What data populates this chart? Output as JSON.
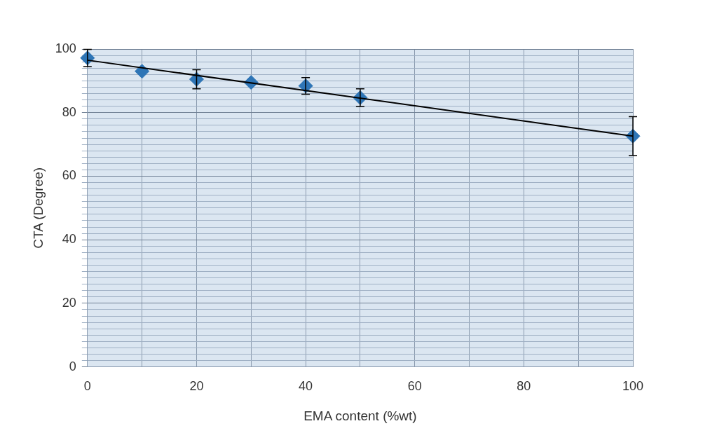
{
  "chart_data": {
    "type": "scatter",
    "xlabel": "EMA content (%wt)",
    "ylabel": "CTA (Degree)",
    "xlim": [
      0,
      100
    ],
    "ylim": [
      0,
      100
    ],
    "xticks": [
      0,
      {
        "value": 10,
        "label": null
      },
      20,
      {
        "value": 30,
        "label": null
      },
      40,
      {
        "value": 50,
        "label": null
      },
      60,
      {
        "value": 70,
        "label": null
      },
      80,
      {
        "value": 90,
        "label": null
      },
      100
    ],
    "yticks": [
      0,
      {
        "value": 2,
        "label": null
      },
      {
        "value": 4,
        "label": null
      },
      {
        "value": 6,
        "label": null
      },
      {
        "value": 8,
        "label": null
      },
      {
        "value": 10,
        "label": null
      },
      {
        "value": 12,
        "label": null
      },
      {
        "value": 14,
        "label": null
      },
      {
        "value": 16,
        "label": null
      },
      {
        "value": 18,
        "label": null
      },
      20,
      {
        "value": 22,
        "label": null
      },
      {
        "value": 24,
        "label": null
      },
      {
        "value": 26,
        "label": null
      },
      {
        "value": 28,
        "label": null
      },
      {
        "value": 30,
        "label": null
      },
      {
        "value": 32,
        "label": null
      },
      {
        "value": 34,
        "label": null
      },
      {
        "value": 36,
        "label": null
      },
      {
        "value": 38,
        "label": null
      },
      40,
      {
        "value": 42,
        "label": null
      },
      {
        "value": 44,
        "label": null
      },
      {
        "value": 46,
        "label": null
      },
      {
        "value": 48,
        "label": null
      },
      {
        "value": 50,
        "label": null
      },
      {
        "value": 52,
        "label": null
      },
      {
        "value": 54,
        "label": null
      },
      {
        "value": 56,
        "label": null
      },
      {
        "value": 58,
        "label": null
      },
      60,
      {
        "value": 62,
        "label": null
      },
      {
        "value": 64,
        "label": null
      },
      {
        "value": 66,
        "label": null
      },
      {
        "value": 68,
        "label": null
      },
      {
        "value": 70,
        "label": null
      },
      {
        "value": 72,
        "label": null
      },
      {
        "value": 74,
        "label": null
      },
      {
        "value": 76,
        "label": null
      },
      {
        "value": 78,
        "label": null
      },
      80,
      {
        "value": 82,
        "label": null
      },
      {
        "value": 84,
        "label": null
      },
      {
        "value": 86,
        "label": null
      },
      {
        "value": 88,
        "label": null
      },
      {
        "value": 90,
        "label": null
      },
      {
        "value": 92,
        "label": null
      },
      {
        "value": 94,
        "label": null
      },
      {
        "value": 96,
        "label": null
      },
      {
        "value": 98,
        "label": null
      },
      100
    ],
    "grid": true,
    "series": [
      {
        "marker": "diamond",
        "color": "#2e75b6",
        "x": [
          0,
          10,
          20,
          30,
          40,
          50,
          100
        ],
        "values": [
          97.2,
          93,
          90.5,
          89.5,
          88.4,
          84.7,
          72.6
        ],
        "errors": [
          2.7,
          null,
          3,
          null,
          2.6,
          2.8,
          6.1
        ]
      },
      {
        "type": "line",
        "marker": "none",
        "color": "#000000",
        "x": [
          0,
          100
        ],
        "values": [
          96.5,
          72.6
        ]
      }
    ]
  }
}
